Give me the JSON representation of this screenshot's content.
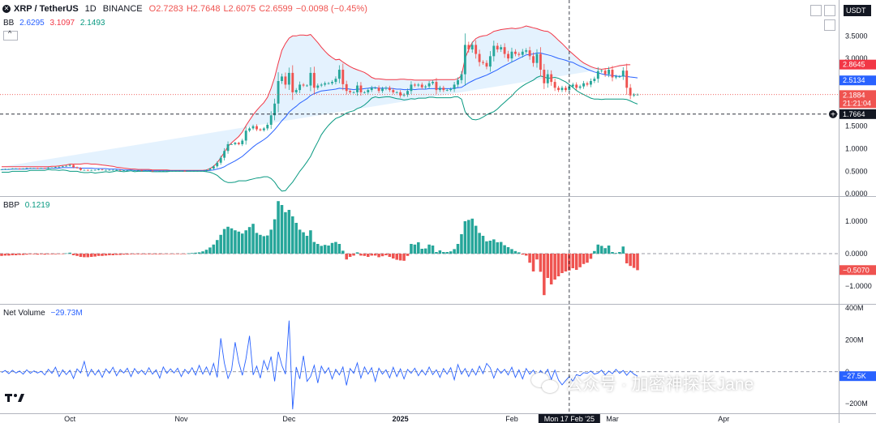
{
  "header": {
    "symbol": "XRP / TetherUS",
    "interval": "1D",
    "exchange": "BINANCE",
    "open": "O2.7283",
    "high": "H2.7648",
    "low": "L2.6075",
    "close": "C2.6599",
    "change": "−0.0098 (−0.45%)",
    "currency": "USDT"
  },
  "bb_legend": {
    "label": "BB",
    "basis": "2.6295",
    "upper": "3.1097",
    "lower": "2.1493"
  },
  "bbp_legend": {
    "label": "BBP",
    "value": "0.1219"
  },
  "nv_legend": {
    "label": "Net Volume",
    "value": "−29.73M"
  },
  "price_badges": {
    "upper": "2.8645",
    "basis": "2.5134",
    "last": "2.1884",
    "countdown": "21:21:04",
    "crosshair": "1.7664"
  },
  "bbp_badge": "−0.5070",
  "nv_badge": "−27.5K",
  "time_axis": {
    "labels": [
      "Oct",
      "Nov",
      "Dec",
      "2025",
      "Feb",
      "Mar",
      "Apr"
    ],
    "crosshair": "Mon 17 Feb '25"
  },
  "watermark": {
    "text": "公众号 · 加密神探长Jane"
  },
  "colors": {
    "up": "#26a69a",
    "down": "#ef5350",
    "bb_upper": "#f23645",
    "bb_basis": "#2962ff",
    "bb_lower": "#089981",
    "bb_fill": "#2196f3",
    "net_volume": "#2962ff"
  },
  "chart_data": [
    {
      "type": "candlestick",
      "title": "XRP / TetherUS · 1D · BINANCE",
      "y_axis": {
        "ticks": [
          "0.0000",
          "0.5000",
          "1.0000",
          "1.5000",
          "2.0000",
          "2.5000",
          "3.0000",
          "3.5000"
        ],
        "ylim": [
          -0.05,
          3.9
        ]
      },
      "x_axis": {
        "labels": [
          "Oct",
          "Nov",
          "Dec",
          "2025",
          "Feb",
          "Mar",
          "Apr"
        ]
      },
      "grid": false,
      "closes": [
        0.54,
        0.55,
        0.55,
        0.56,
        0.56,
        0.55,
        0.56,
        0.57,
        0.57,
        0.57,
        0.56,
        0.57,
        0.56,
        0.58,
        0.58,
        0.59,
        0.6,
        0.61,
        0.62,
        0.64,
        0.59,
        0.57,
        0.53,
        0.53,
        0.52,
        0.53,
        0.53,
        0.54,
        0.53,
        0.53,
        0.53,
        0.53,
        0.53,
        0.52,
        0.52,
        0.52,
        0.52,
        0.52,
        0.52,
        0.51,
        0.51,
        0.51,
        0.5,
        0.5,
        0.51,
        0.51,
        0.51,
        0.51,
        0.51,
        0.51,
        0.51,
        0.5,
        0.51,
        0.51,
        0.51,
        0.51,
        0.51,
        0.53,
        0.56,
        0.61,
        0.69,
        0.8,
        0.95,
        1.1,
        1.1,
        1.13,
        1.1,
        1.18,
        1.4,
        1.45,
        1.5,
        1.43,
        1.41,
        1.45,
        1.53,
        1.74,
        2.0,
        2.5,
        2.6,
        2.42,
        2.68,
        2.25,
        2.3,
        2.42,
        2.4,
        2.4,
        2.68,
        2.35,
        2.4,
        2.42,
        2.45,
        2.45,
        2.48,
        2.55,
        2.75,
        2.43,
        2.28,
        2.25,
        2.25,
        2.4,
        2.25,
        2.25,
        2.3,
        2.35,
        2.35,
        2.28,
        2.33,
        2.35,
        2.3,
        2.25,
        2.25,
        2.18,
        2.2,
        2.28,
        2.42,
        2.4,
        2.42,
        2.36,
        2.38,
        2.45,
        2.48,
        2.3,
        2.35,
        2.3,
        2.3,
        2.32,
        2.42,
        2.52,
        2.65,
        3.3,
        3.2,
        3.3,
        3.1,
        2.92,
        2.9,
        2.82,
        3.05,
        3.28,
        3.2,
        3.25,
        3.1,
        3.0,
        3.15,
        3.1,
        3.08,
        3.15,
        3.18,
        3.05,
        2.9,
        3.1,
        2.75,
        2.45,
        2.65,
        2.48,
        2.35,
        2.3,
        2.35,
        2.3,
        2.38,
        2.42,
        2.35,
        2.38,
        2.45,
        2.42,
        2.5,
        2.55,
        2.72,
        2.73,
        2.65,
        2.75,
        2.58,
        2.6,
        2.6,
        2.73,
        2.35,
        2.18,
        2.2,
        2.2
      ],
      "bb_basis": [
        0.54,
        0.54,
        0.54,
        0.55,
        0.55,
        0.55,
        0.55,
        0.55,
        0.56,
        0.56,
        0.56,
        0.56,
        0.56,
        0.57,
        0.57,
        0.57,
        0.57,
        0.58,
        0.58,
        0.58,
        0.58,
        0.58,
        0.57,
        0.57,
        0.57,
        0.57,
        0.56,
        0.56,
        0.56,
        0.56,
        0.55,
        0.55,
        0.55,
        0.54,
        0.53,
        0.53,
        0.53,
        0.52,
        0.52,
        0.52,
        0.52,
        0.52,
        0.51,
        0.51,
        0.51,
        0.51,
        0.51,
        0.51,
        0.51,
        0.51,
        0.51,
        0.51,
        0.51,
        0.51,
        0.51,
        0.51,
        0.51,
        0.51,
        0.52,
        0.53,
        0.55,
        0.57,
        0.6,
        0.65,
        0.69,
        0.73,
        0.78,
        0.83,
        0.9,
        0.97,
        1.04,
        1.1,
        1.15,
        1.2,
        1.26,
        1.34,
        1.42,
        1.52,
        1.62,
        1.7,
        1.81,
        1.88,
        1.94,
        2.01,
        2.06,
        2.11,
        2.18,
        2.22,
        2.25,
        2.28,
        2.29,
        2.3,
        2.31,
        2.32,
        2.34,
        2.33,
        2.33,
        2.32,
        2.31,
        2.32,
        2.32,
        2.33,
        2.34,
        2.35,
        2.35,
        2.34,
        2.34,
        2.34,
        2.34,
        2.33,
        2.32,
        2.32,
        2.31,
        2.31,
        2.32,
        2.31,
        2.32,
        2.32,
        2.32,
        2.33,
        2.33,
        2.33,
        2.33,
        2.33,
        2.33,
        2.33,
        2.34,
        2.35,
        2.36,
        2.41,
        2.46,
        2.5,
        2.54,
        2.57,
        2.6,
        2.63,
        2.67,
        2.71,
        2.75,
        2.8,
        2.84,
        2.88,
        2.92,
        2.96,
        3.0,
        3.04,
        3.08,
        3.09,
        3.1,
        3.12,
        3.12,
        3.1,
        3.08,
        3.06,
        3.03,
        3.0,
        2.98,
        2.96,
        2.93,
        2.91,
        2.87,
        2.83,
        2.8,
        2.76,
        2.73,
        2.7,
        2.68,
        2.66,
        2.64,
        2.63,
        2.62,
        2.61,
        2.6,
        2.61,
        2.6,
        2.59,
        2.58,
        2.57
      ],
      "bb_upper": [
        0.6,
        0.6,
        0.6,
        0.6,
        0.6,
        0.6,
        0.6,
        0.6,
        0.6,
        0.6,
        0.6,
        0.6,
        0.6,
        0.6,
        0.61,
        0.61,
        0.62,
        0.63,
        0.64,
        0.66,
        0.66,
        0.66,
        0.66,
        0.67,
        0.67,
        0.66,
        0.66,
        0.65,
        0.64,
        0.63,
        0.62,
        0.61,
        0.59,
        0.58,
        0.57,
        0.56,
        0.55,
        0.55,
        0.54,
        0.54,
        0.54,
        0.54,
        0.53,
        0.53,
        0.53,
        0.53,
        0.53,
        0.52,
        0.52,
        0.52,
        0.52,
        0.52,
        0.52,
        0.52,
        0.52,
        0.52,
        0.52,
        0.53,
        0.56,
        0.61,
        0.69,
        0.8,
        0.92,
        1.05,
        1.13,
        1.2,
        1.27,
        1.37,
        1.51,
        1.63,
        1.75,
        1.85,
        1.94,
        2.02,
        2.14,
        2.34,
        2.58,
        2.9,
        3.18,
        3.33,
        3.45,
        3.5,
        3.5,
        3.52,
        3.52,
        3.51,
        3.53,
        3.44,
        3.35,
        3.25,
        3.16,
        3.08,
        3.02,
        2.97,
        2.98,
        2.92,
        2.87,
        2.82,
        2.78,
        2.75,
        2.72,
        2.69,
        2.64,
        2.58,
        2.55,
        2.55,
        2.54,
        2.53,
        2.53,
        2.53,
        2.53,
        2.54,
        2.54,
        2.53,
        2.53,
        2.52,
        2.52,
        2.52,
        2.52,
        2.52,
        2.52,
        2.53,
        2.53,
        2.53,
        2.53,
        2.53,
        2.53,
        2.55,
        2.62,
        3.0,
        3.2,
        3.35,
        3.44,
        3.48,
        3.5,
        3.51,
        3.55,
        3.6,
        3.62,
        3.64,
        3.65,
        3.66,
        3.67,
        3.66,
        3.67,
        3.69,
        3.72,
        3.7,
        3.68,
        3.66,
        3.63,
        3.61,
        3.6,
        3.55,
        3.48,
        3.4,
        3.33,
        3.25,
        3.17,
        3.1,
        3.03,
        2.96,
        2.9,
        2.86,
        2.82,
        2.79,
        2.77,
        2.76,
        2.77,
        2.78,
        2.8,
        2.82,
        2.84,
        2.85,
        2.86,
        2.86
      ],
      "bb_lower": [
        0.48,
        0.48,
        0.48,
        0.5,
        0.5,
        0.5,
        0.5,
        0.5,
        0.52,
        0.52,
        0.52,
        0.52,
        0.52,
        0.54,
        0.53,
        0.53,
        0.52,
        0.53,
        0.52,
        0.5,
        0.5,
        0.5,
        0.48,
        0.47,
        0.47,
        0.48,
        0.46,
        0.47,
        0.48,
        0.49,
        0.48,
        0.49,
        0.51,
        0.5,
        0.49,
        0.5,
        0.51,
        0.49,
        0.5,
        0.5,
        0.5,
        0.5,
        0.49,
        0.49,
        0.49,
        0.49,
        0.49,
        0.5,
        0.5,
        0.5,
        0.5,
        0.5,
        0.5,
        0.5,
        0.5,
        0.5,
        0.5,
        0.49,
        0.48,
        0.45,
        0.41,
        0.34,
        0.28,
        0.25,
        0.25,
        0.26,
        0.29,
        0.29,
        0.29,
        0.31,
        0.33,
        0.35,
        0.36,
        0.38,
        0.38,
        0.34,
        0.26,
        0.14,
        0.06,
        0.07,
        0.17,
        0.26,
        0.38,
        0.5,
        0.6,
        0.71,
        0.83,
        1.0,
        1.15,
        1.31,
        1.42,
        1.52,
        1.6,
        1.67,
        1.7,
        1.74,
        1.79,
        1.82,
        1.84,
        1.89,
        1.92,
        1.97,
        2.04,
        2.12,
        2.15,
        2.13,
        2.14,
        2.15,
        2.15,
        2.13,
        2.11,
        2.1,
        2.08,
        2.09,
        2.11,
        2.1,
        2.12,
        2.12,
        2.12,
        2.14,
        2.14,
        2.13,
        2.13,
        2.13,
        2.13,
        2.13,
        2.15,
        2.15,
        2.1,
        1.82,
        1.72,
        1.65,
        1.64,
        1.66,
        1.7,
        1.75,
        1.79,
        1.82,
        1.88,
        1.96,
        2.03,
        2.1,
        2.17,
        2.26,
        2.33,
        2.39,
        2.44,
        2.48,
        2.52,
        2.58,
        2.61,
        2.59,
        2.56,
        2.57,
        2.58,
        2.56,
        2.52,
        2.48,
        2.42,
        2.36,
        2.29,
        2.24,
        2.2,
        2.16,
        2.12,
        2.1,
        2.1,
        2.09,
        2.1,
        2.1,
        2.1,
        2.1,
        2.1,
        2.1,
        2.09,
        2.06,
        2.02,
        1.99
      ]
    },
    {
      "type": "bar",
      "title": "BBP",
      "y_axis": {
        "ticks": [
          "1.0000",
          "0.0000",
          "−1.0000"
        ],
        "ylim": [
          -1.55,
          1.75
        ]
      },
      "values": [
        -0.07,
        -0.06,
        -0.06,
        -0.05,
        -0.05,
        -0.04,
        -0.04,
        -0.03,
        -0.02,
        -0.02,
        -0.03,
        -0.02,
        -0.03,
        -0.02,
        -0.02,
        -0.02,
        -0.01,
        -0.01,
        0.01,
        0.03,
        -0.05,
        -0.07,
        -0.1,
        -0.11,
        -0.11,
        -0.1,
        -0.09,
        -0.07,
        -0.07,
        -0.06,
        -0.05,
        -0.05,
        -0.04,
        -0.04,
        -0.03,
        -0.03,
        -0.02,
        -0.02,
        -0.02,
        -0.02,
        -0.02,
        -0.02,
        -0.02,
        -0.02,
        -0.02,
        -0.01,
        -0.01,
        -0.01,
        -0.01,
        -0.01,
        -0.01,
        -0.01,
        0.01,
        0.02,
        0.03,
        0.04,
        0.07,
        0.12,
        0.19,
        0.28,
        0.42,
        0.58,
        0.76,
        0.83,
        0.78,
        0.72,
        0.68,
        0.62,
        0.72,
        0.82,
        0.92,
        0.64,
        0.58,
        0.54,
        0.56,
        0.74,
        1.06,
        1.62,
        1.5,
        1.28,
        1.35,
        1.15,
        0.95,
        0.74,
        0.66,
        0.55,
        0.72,
        0.36,
        0.3,
        0.24,
        0.27,
        0.25,
        0.33,
        0.36,
        0.3,
        0.09,
        -0.18,
        -0.1,
        -0.06,
        0.04,
        -0.06,
        -0.07,
        -0.1,
        -0.06,
        -0.06,
        -0.11,
        -0.08,
        -0.05,
        -0.1,
        -0.15,
        -0.19,
        -0.21,
        -0.22,
        -0.07,
        0.3,
        0.28,
        0.35,
        0.15,
        0.16,
        0.28,
        0.25,
        0.05,
        0.1,
        0.05,
        0.05,
        0.07,
        0.14,
        0.3,
        0.6,
        1.0,
        1.04,
        1.08,
        0.86,
        0.64,
        0.55,
        0.38,
        0.4,
        0.44,
        0.35,
        0.36,
        0.26,
        0.2,
        0.14,
        0.08,
        0.04,
        -0.03,
        -0.06,
        -0.28,
        -0.55,
        -0.18,
        -0.56,
        -1.28,
        -0.75,
        -0.95,
        -0.8,
        -0.7,
        -0.6,
        -0.55,
        -0.52,
        -0.45,
        -0.5,
        -0.42,
        -0.32,
        -0.28,
        -0.16,
        0.08,
        0.28,
        0.24,
        0.17,
        0.25,
        0.05,
        0.02,
        0.05,
        0.22,
        -0.3,
        -0.38,
        -0.44,
        -0.51
      ]
    },
    {
      "type": "line",
      "title": "Net Volume",
      "y_axis": {
        "ticks": [
          "400M",
          "200M",
          "0",
          "−200M"
        ],
        "ylim": [
          -260,
          420
        ]
      },
      "values": [
        -5,
        8,
        -12,
        10,
        -8,
        5,
        -15,
        12,
        -10,
        6,
        -8,
        4,
        -20,
        15,
        -10,
        28,
        -30,
        12,
        -18,
        10,
        -42,
        18,
        -8,
        65,
        -28,
        15,
        -20,
        12,
        -35,
        18,
        -10,
        28,
        -25,
        14,
        -8,
        22,
        -30,
        20,
        -12,
        10,
        -18,
        25,
        -15,
        12,
        -40,
        30,
        -10,
        18,
        -8,
        22,
        -30,
        15,
        -12,
        25,
        -20,
        40,
        -15,
        30,
        -20,
        52,
        -35,
        210,
        55,
        -42,
        10,
        185,
        60,
        -22,
        80,
        225,
        -20,
        35,
        -40,
        70,
        12,
        95,
        -60,
        125,
        40,
        -15,
        320,
        -235,
        30,
        -45,
        100,
        -60,
        -30,
        40,
        -70,
        35,
        -10,
        25,
        -45,
        15,
        -20,
        30,
        -85,
        20,
        -10,
        55,
        -40,
        30,
        -15,
        25,
        -60,
        22,
        -15,
        12,
        -38,
        28,
        -30,
        18,
        -45,
        15,
        -10,
        22,
        -25,
        12,
        -20,
        30,
        -18,
        12,
        -35,
        20,
        -15,
        25,
        -50,
        45,
        -15,
        20,
        -30,
        18,
        -20,
        35,
        -12,
        52,
        25,
        -40,
        20,
        -10,
        15,
        -20,
        28,
        -35,
        12,
        -45,
        20,
        -15,
        10,
        -30,
        8,
        -20,
        15,
        -48,
        10,
        -52,
        -82,
        -55,
        -30,
        -60,
        -18,
        -25,
        -5,
        -10,
        5,
        -15,
        -8,
        10,
        -20,
        5,
        -12,
        15,
        -10,
        8,
        -22,
        5,
        -15,
        -27.5
      ]
    }
  ]
}
